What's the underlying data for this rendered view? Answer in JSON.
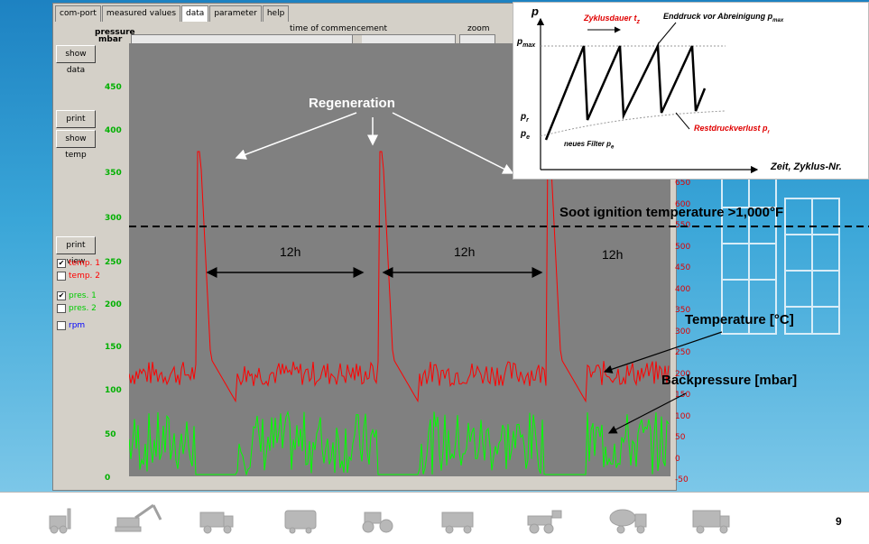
{
  "tabs": [
    "com-port",
    "measured values",
    "data",
    "parameter",
    "help"
  ],
  "active_tab": "data",
  "buttons": {
    "show_data": "show data",
    "print_report": "print report",
    "show_temp": "show temp",
    "print_view": "print view"
  },
  "checkboxes": [
    {
      "label": "temp. 1",
      "checked": true,
      "color": "#ff0000"
    },
    {
      "label": "temp. 2",
      "checked": false,
      "color": "#ff0000"
    },
    {
      "label": "pres. 1",
      "checked": true,
      "color": "#00cc00"
    },
    {
      "label": "pres. 2",
      "checked": false,
      "color": "#00cc00"
    },
    {
      "label": "rpm",
      "checked": false,
      "color": "#0000ff"
    }
  ],
  "scroll": {
    "commencement_label": "time of commencement",
    "zoom_label": "zoom"
  },
  "axis_pressure": {
    "label_line1": "pressure",
    "label_line2": "mbar",
    "ticks": [
      "450",
      "400",
      "350",
      "300",
      "250",
      "200",
      "150",
      "100",
      "50",
      "0"
    ]
  },
  "axis_temp": {
    "ticks": [
      "650",
      "600",
      "550",
      "500",
      "450",
      "400",
      "350",
      "300",
      "250",
      "200",
      "150",
      "100",
      "50",
      "0",
      "-50"
    ]
  },
  "annotations": {
    "regeneration": "Regeneration",
    "soot": "Soot ignition temperature >1,000°F",
    "interval": "12h",
    "temperature": "Temperature [°C]",
    "backpressure": "Backpressure [mbar]"
  },
  "inset": {
    "p_axis": "p",
    "zyklusdauer": "Zyklusdauer t",
    "zyklusdauer_sub": "z",
    "enddruck": "Enddruck vor Abreinigung p",
    "enddruck_sub": "max",
    "pmax": "p",
    "pmax_sub": "max",
    "pr": "p",
    "pr_sub": "r",
    "pe": "p",
    "pe_sub": "e",
    "neues_filter": "neues Filter p",
    "neues_filter_sub": "e",
    "restdruck": "Restdruckverlust p",
    "restdruck_sub": "r",
    "zeit": "Zeit, Zyklus-Nr."
  },
  "page_number": "9",
  "colors": {
    "temp": "#ff0000",
    "pressure": "#00ff00",
    "plot_bg": "#808080",
    "accent": "#1d82c2"
  },
  "footer_icons": [
    "forklift-icon",
    "excavator-icon",
    "snowplow-truck-icon",
    "bus-icon",
    "road-roller-icon",
    "street-sweeper-icon",
    "wheel-loader-icon",
    "concrete-mixer-icon",
    "garbage-truck-icon"
  ]
}
